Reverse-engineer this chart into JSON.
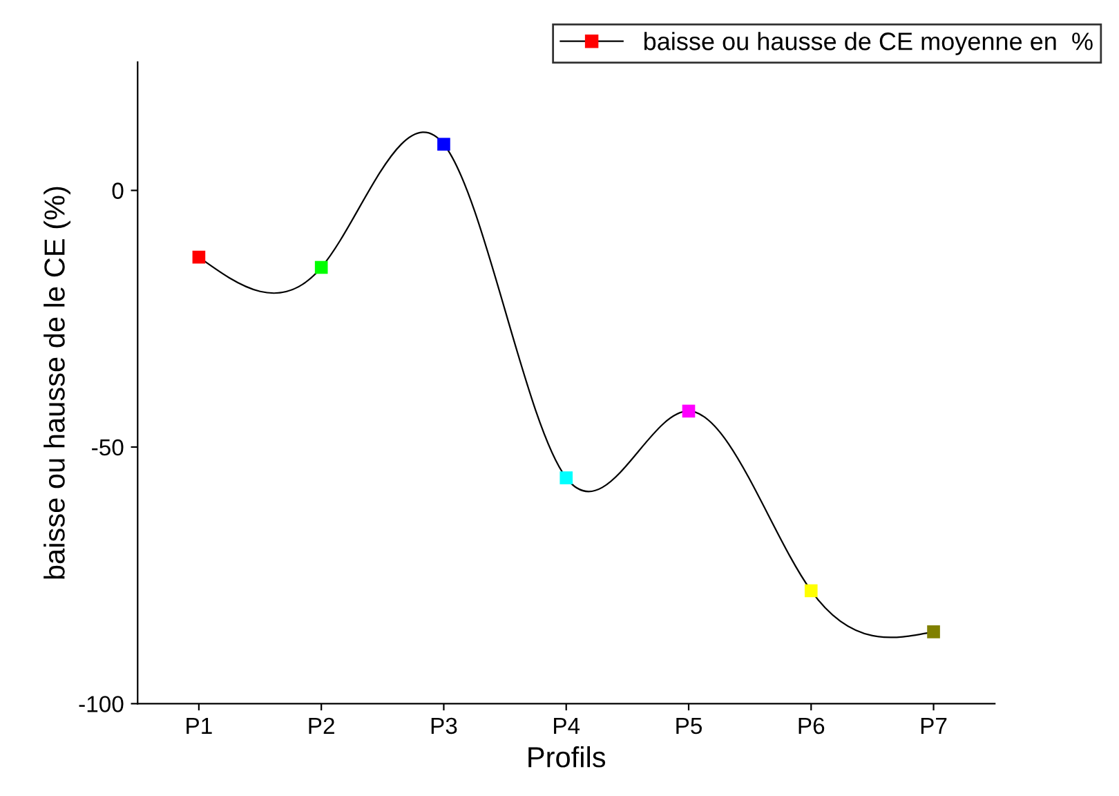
{
  "chart_data": {
    "type": "line",
    "xlabel": "Profils",
    "ylabel": "baisse ou hausse de le CE (%)",
    "categories": [
      "P1",
      "P2",
      "P3",
      "P4",
      "P5",
      "P6",
      "P7"
    ],
    "series": [
      {
        "name": "baisse ou hausse de CE moyenne en  %",
        "color": "#000000",
        "colors": [
          "#ff0000",
          "#00ff00",
          "#0000ff",
          "#00ffff",
          "#ff00ff",
          "#ffff00",
          "#808000"
        ],
        "values": [
          -13,
          -15,
          9,
          -56,
          -43,
          -78,
          -86
        ]
      }
    ],
    "ylim": [
      -100,
      25
    ],
    "yticks": [
      -100,
      -50,
      0
    ],
    "marker": "square",
    "line_style": "solid",
    "grid": false,
    "legend": "top right"
  }
}
